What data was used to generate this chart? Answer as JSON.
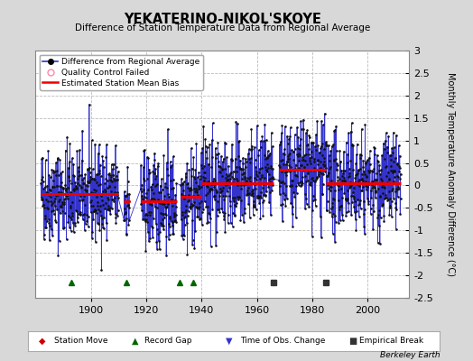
{
  "title": "YEKATERINO-NIKOL'SKOYE",
  "subtitle": "Difference of Station Temperature Data from Regional Average",
  "ylabel": "Monthly Temperature Anomaly Difference (°C)",
  "xlim": [
    1880,
    2015
  ],
  "ylim": [
    -2.5,
    3.0
  ],
  "yticks": [
    -2.5,
    -2,
    -1.5,
    -1,
    -0.5,
    0,
    0.5,
    1,
    1.5,
    2,
    2.5,
    3
  ],
  "ytick_labels": [
    "-2.5",
    "-2",
    "-1.5",
    "-1",
    "-0.5",
    "0",
    "0.5",
    "1",
    "1.5",
    "2",
    "2.5",
    "3"
  ],
  "xticks": [
    1900,
    1920,
    1940,
    1960,
    1980,
    2000
  ],
  "background_color": "#d8d8d8",
  "plot_bg_color": "#ffffff",
  "grid_color": "#bbbbbb",
  "line_color": "#3333cc",
  "data_color": "#111111",
  "bias_color": "#ee0000",
  "record_gap_color": "#006600",
  "empirical_break_color": "#333333",
  "station_move_color": "#cc0000",
  "obs_change_color": "#3333cc",
  "segments": [
    {
      "start": 1882.0,
      "end": 1910.0,
      "bias": -0.2
    },
    {
      "start": 1912.0,
      "end": 1914.0,
      "bias": -0.35
    },
    {
      "start": 1918.0,
      "end": 1931.0,
      "bias": -0.35
    },
    {
      "start": 1932.5,
      "end": 1940.0,
      "bias": -0.25
    },
    {
      "start": 1940.0,
      "end": 1966.0,
      "bias": 0.05
    },
    {
      "start": 1968.0,
      "end": 1985.0,
      "bias": 0.35
    },
    {
      "start": 1985.0,
      "end": 2012.0,
      "bias": 0.05
    }
  ],
  "record_gaps": [
    1893,
    1913,
    1932,
    1937
  ],
  "empirical_breaks": [
    1966,
    1985
  ],
  "obs_changes": [],
  "station_moves": [],
  "seed": 42,
  "noise_std": 0.52
}
